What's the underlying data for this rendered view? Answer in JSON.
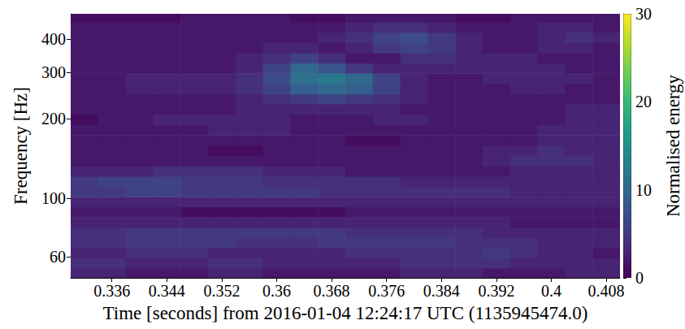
{
  "chart_data": {
    "type": "heatmap",
    "x_label": "Time [seconds] from 2016-01-04 12:24:17 UTC (1135945474.0)",
    "y_label": "Frequency [Hz]",
    "xlim": [
      0.33,
      0.41
    ],
    "xticks": [
      0.336,
      0.344,
      0.352,
      0.36,
      0.368,
      0.376,
      0.384,
      0.392,
      0.4,
      0.408
    ],
    "ylim": [
      50,
      500
    ],
    "yticks": [
      60,
      100,
      200,
      300,
      400
    ],
    "log": "y",
    "grid": true,
    "x": [
      0.332,
      0.336,
      0.34,
      0.344,
      0.348,
      0.352,
      0.356,
      0.36,
      0.364,
      0.368,
      0.372,
      0.376,
      0.38,
      0.384,
      0.388,
      0.392,
      0.396,
      0.4,
      0.404,
      0.408
    ],
    "y": [
      52,
      57,
      62,
      68,
      74,
      81,
      89,
      97,
      106,
      116,
      127,
      139,
      152,
      166,
      182,
      199,
      218,
      238,
      260,
      285,
      311,
      340,
      372,
      407,
      445,
      487
    ],
    "cells": [
      [
        3,
        3,
        2,
        2,
        2,
        3,
        3,
        2,
        2,
        2,
        2,
        2,
        3,
        3,
        3,
        2,
        2,
        2,
        3,
        3
      ],
      [
        4,
        4,
        3,
        3,
        3,
        4,
        4,
        3,
        3,
        3,
        3,
        3,
        4,
        4,
        4,
        4,
        3,
        3,
        3,
        3
      ],
      [
        3,
        3,
        4,
        4,
        4,
        3,
        3,
        3,
        3,
        3,
        4,
        4,
        4,
        4,
        4,
        5,
        4,
        3,
        3,
        2
      ],
      [
        4,
        4,
        5,
        5,
        5,
        5,
        4,
        4,
        4,
        5,
        5,
        5,
        5,
        5,
        4,
        4,
        4,
        3,
        3,
        3
      ],
      [
        4,
        4,
        5,
        5,
        5,
        5,
        5,
        5,
        5,
        5,
        4,
        4,
        4,
        4,
        4,
        3,
        3,
        3,
        3,
        3
      ],
      [
        3,
        3,
        3,
        3,
        3,
        3,
        3,
        3,
        3,
        3,
        3,
        3,
        3,
        3,
        3,
        3,
        2,
        2,
        2,
        2
      ],
      [
        2,
        2,
        2,
        2,
        1,
        1,
        1,
        1,
        1,
        1,
        2,
        2,
        2,
        2,
        2,
        2,
        2,
        2,
        2,
        2
      ],
      [
        3,
        3,
        3,
        3,
        3,
        3,
        3,
        3,
        3,
        3,
        3,
        3,
        3,
        3,
        3,
        3,
        3,
        3,
        3,
        3
      ],
      [
        5,
        5,
        6,
        6,
        5,
        5,
        5,
        5,
        5,
        4,
        4,
        4,
        4,
        4,
        4,
        4,
        3,
        3,
        3,
        3
      ],
      [
        5,
        6,
        6,
        6,
        5,
        5,
        5,
        4,
        4,
        4,
        4,
        4,
        3,
        3,
        3,
        3,
        3,
        3,
        3,
        3
      ],
      [
        3,
        3,
        3,
        4,
        4,
        4,
        4,
        3,
        3,
        3,
        2,
        2,
        2,
        2,
        2,
        2,
        3,
        3,
        3,
        3
      ],
      [
        2,
        2,
        2,
        2,
        2,
        2,
        2,
        2,
        2,
        2,
        2,
        2,
        2,
        2,
        2,
        3,
        4,
        4,
        4,
        3
      ],
      [
        2,
        2,
        2,
        2,
        2,
        1,
        1,
        2,
        2,
        2,
        2,
        2,
        2,
        2,
        2,
        3,
        3,
        4,
        3,
        3
      ],
      [
        2,
        2,
        2,
        2,
        2,
        2,
        2,
        2,
        2,
        2,
        1,
        1,
        2,
        2,
        2,
        2,
        2,
        3,
        3,
        3
      ],
      [
        2,
        2,
        2,
        2,
        2,
        3,
        3,
        3,
        2,
        2,
        2,
        2,
        2,
        2,
        2,
        2,
        2,
        3,
        3,
        3
      ],
      [
        1,
        2,
        2,
        3,
        3,
        3,
        3,
        3,
        2,
        2,
        2,
        3,
        3,
        2,
        2,
        2,
        2,
        2,
        3,
        3
      ],
      [
        2,
        2,
        2,
        2,
        2,
        2,
        3,
        3,
        3,
        3,
        3,
        3,
        2,
        2,
        2,
        2,
        2,
        2,
        3,
        3
      ],
      [
        2,
        2,
        2,
        2,
        2,
        2,
        3,
        4,
        5,
        6,
        5,
        4,
        3,
        2,
        2,
        2,
        2,
        2,
        2,
        2
      ],
      [
        2,
        2,
        3,
        3,
        3,
        3,
        4,
        6,
        9,
        10,
        9,
        6,
        3,
        2,
        2,
        2,
        3,
        3,
        2,
        2
      ],
      [
        2,
        2,
        3,
        3,
        3,
        3,
        4,
        7,
        11,
        12,
        10,
        6,
        3,
        2,
        2,
        3,
        3,
        3,
        3,
        2
      ],
      [
        2,
        2,
        2,
        2,
        2,
        2,
        3,
        6,
        10,
        8,
        5,
        3,
        3,
        3,
        3,
        3,
        3,
        3,
        2,
        2
      ],
      [
        2,
        2,
        2,
        2,
        2,
        2,
        3,
        4,
        6,
        4,
        2,
        2,
        4,
        4,
        3,
        3,
        3,
        2,
        2,
        2
      ],
      [
        2,
        2,
        2,
        2,
        2,
        2,
        2,
        3,
        3,
        2,
        3,
        5,
        6,
        5,
        3,
        2,
        2,
        3,
        3,
        2
      ],
      [
        2,
        2,
        2,
        2,
        2,
        2,
        2,
        2,
        2,
        3,
        4,
        6,
        7,
        5,
        3,
        2,
        2,
        3,
        4,
        3
      ],
      [
        2,
        2,
        2,
        2,
        2,
        2,
        2,
        2,
        2,
        2,
        3,
        4,
        4,
        3,
        2,
        2,
        2,
        3,
        3,
        2
      ],
      [
        1,
        1,
        1,
        1,
        2,
        2,
        2,
        2,
        1,
        1,
        2,
        2,
        2,
        2,
        1,
        1,
        2,
        2,
        2,
        2
      ]
    ],
    "colorbar": {
      "label": "Normalised energy",
      "range": [
        0,
        30
      ],
      "ticks": [
        0,
        10,
        20,
        30
      ]
    }
  }
}
